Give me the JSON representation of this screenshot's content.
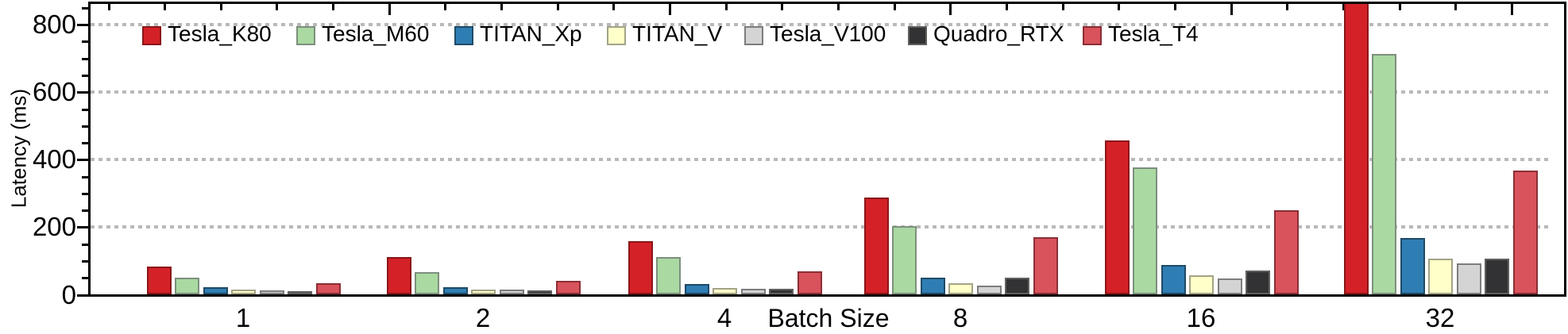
{
  "chart_data": {
    "type": "bar",
    "title": "",
    "xlabel": "Batch Size",
    "ylabel": "Latency (ms)",
    "categories": [
      "1",
      "2",
      "4",
      "8",
      "16",
      "32"
    ],
    "series": [
      {
        "name": "Tesla_K80",
        "fill": "#d42127",
        "stroke": "#8a1619",
        "values": [
          82,
          110,
          157,
          287,
          457,
          875
        ]
      },
      {
        "name": "Tesla_M60",
        "fill": "#aad9a2",
        "stroke": "#7d8f7d",
        "values": [
          49,
          65,
          110,
          203,
          377,
          712
        ]
      },
      {
        "name": "TITAN_Xp",
        "fill": "#2f7eb3",
        "stroke": "#1f4a66",
        "values": [
          20,
          21,
          30,
          49,
          86,
          167
        ]
      },
      {
        "name": "TITAN_V",
        "fill": "#ffffc9",
        "stroke": "#a3a387",
        "values": [
          13,
          15,
          18,
          33,
          57,
          106
        ]
      },
      {
        "name": "Tesla_V100",
        "fill": "#d4d4d4",
        "stroke": "#7d7d7d",
        "values": [
          12,
          13,
          16,
          27,
          47,
          92
        ]
      },
      {
        "name": "Quadro_RTX",
        "fill": "#323234",
        "stroke": "#5f5f5f",
        "values": [
          9,
          12,
          17,
          49,
          71,
          106
        ]
      },
      {
        "name": "Tesla_T4",
        "fill": "#d9535c",
        "stroke": "#8b2e35",
        "values": [
          32,
          41,
          67,
          169,
          249,
          367
        ]
      }
    ],
    "y_axis": {
      "major_ticks": [
        0,
        200,
        400,
        600,
        800
      ],
      "minor_tick_step": 50,
      "visible_max": 868
    },
    "legend_position": "top",
    "grid": "horizontal-dotted-at-major-ticks",
    "axis_color": "#000000",
    "gridline_color": "#b9b9b9",
    "background_color": "#ffffff"
  }
}
